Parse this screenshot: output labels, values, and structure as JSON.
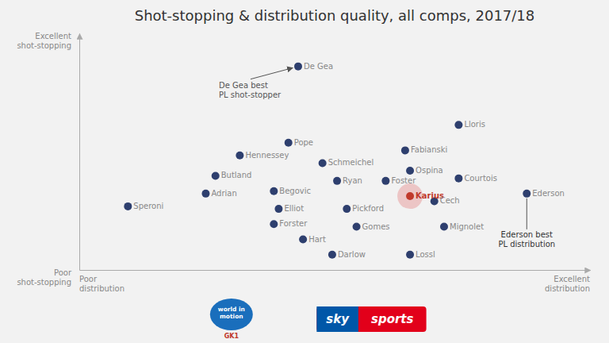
{
  "chart_data": {
    "type": "scatter",
    "title": "Shot-stopping & distribution quality, all comps, 2017/18",
    "xlabel": [
      "Poor\ndistribution",
      "Excellent\ndistribution"
    ],
    "ylabel": [
      "Poor\nshot-stopping",
      "Excellent\nshot-stopping"
    ],
    "labels": [
      "De Gea",
      "Lloris",
      "Pope",
      "Hennessey",
      "Fabianski",
      "Schmeichel",
      "Ospina",
      "Butland",
      "Ryan",
      "Foster",
      "Courtois",
      "Adrian",
      "Begovic",
      "Karius",
      "Cech",
      "Speroni",
      "Elliot",
      "Pickford",
      "Ederson",
      "Forster",
      "Gomes",
      "Mignolet",
      "Hart",
      "Darlow",
      "Lossl"
    ],
    "x": [
      4.5,
      7.8,
      4.3,
      3.3,
      6.7,
      5.0,
      6.8,
      2.8,
      5.3,
      6.3,
      7.8,
      2.6,
      4.0,
      6.8,
      7.3,
      1.0,
      4.1,
      5.5,
      9.2,
      4.0,
      5.7,
      7.5,
      4.6,
      5.2,
      6.8
    ],
    "values": [
      9.5,
      7.2,
      6.5,
      6.0,
      6.2,
      5.7,
      5.4,
      5.2,
      5.0,
      5.0,
      5.1,
      4.5,
      4.6,
      4.4,
      4.2,
      4.0,
      3.9,
      3.9,
      4.5,
      3.3,
      3.2,
      3.2,
      2.7,
      2.1,
      2.1
    ],
    "color": "#2e3f6e",
    "colors": [
      "#2e3f6e",
      "#2e3f6e",
      "#2e3f6e",
      "#2e3f6e",
      "#2e3f6e",
      "#2e3f6e",
      "#2e3f6e",
      "#2e3f6e",
      "#2e3f6e",
      "#2e3f6e",
      "#2e3f6e",
      "#2e3f6e",
      "#2e3f6e",
      "#c0392b",
      "#2e3f6e",
      "#2e3f6e",
      "#2e3f6e",
      "#2e3f6e",
      "#2e3f6e",
      "#2e3f6e",
      "#2e3f6e",
      "#2e3f6e",
      "#2e3f6e",
      "#2e3f6e",
      "#2e3f6e"
    ],
    "xlim": [
      0.0,
      10.5
    ],
    "ylim": [
      1.5,
      10.8
    ],
    "xticks": [],
    "yticks": [],
    "tick_labels": false,
    "grid": false,
    "annotations": [
      {
        "text": "De Gea best\nPL shot-stopper",
        "x": 4.5,
        "y": 9.5
      },
      {
        "text": "Ederson best\nPL distribution",
        "x": 9.2,
        "y": 4.5
      }
    ],
    "footer": [
      "world in\nmotion",
      "GK1",
      "sky",
      "sports"
    ]
  }
}
